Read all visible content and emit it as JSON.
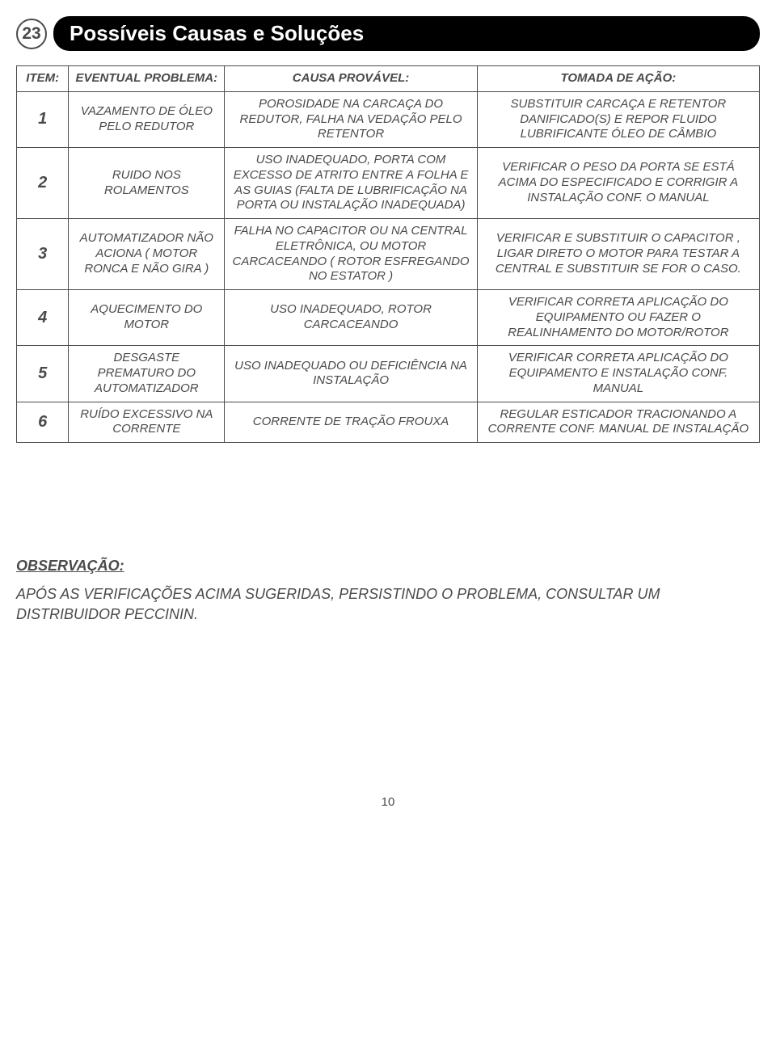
{
  "step_number": "23",
  "page_title": "Possíveis Causas e Soluções",
  "table": {
    "headers": {
      "item": "ITEM:",
      "problem": "EVENTUAL PROBLEMA:",
      "cause": "CAUSA PROVÁVEL:",
      "action": "TOMADA DE AÇÃO:"
    },
    "rows": [
      {
        "item": "1",
        "problem": "VAZAMENTO DE ÓLEO PELO REDUTOR",
        "cause": "POROSIDADE NA CARCAÇA DO REDUTOR, FALHA NA VEDAÇÃO PELO RETENTOR",
        "action": "SUBSTITUIR CARCAÇA E RETENTOR DANIFICADO(S) E REPOR FLUIDO LUBRIFICANTE ÓLEO DE CÂMBIO"
      },
      {
        "item": "2",
        "problem": "RUIDO NOS ROLAMENTOS",
        "cause": "USO INADEQUADO, PORTA COM EXCESSO DE ATRITO ENTRE A FOLHA E AS GUIAS (FALTA DE LUBRIFICAÇÃO NA PORTA OU INSTALAÇÃO INADEQUADA)",
        "action": "VERIFICAR O PESO DA PORTA SE ESTÁ ACIMA DO ESPECIFICADO E CORRIGIR A INSTALAÇÃO CONF. O MANUAL"
      },
      {
        "item": "3",
        "problem": "AUTOMATIZADOR NÃO ACIONA ( MOTOR RONCA E NÃO GIRA )",
        "cause": "FALHA NO CAPACITOR OU NA CENTRAL ELETRÔNICA, OU MOTOR CARCACEANDO ( ROTOR ESFREGANDO NO ESTATOR )",
        "action": "VERIFICAR E SUBSTITUIR O CAPACITOR , LIGAR DIRETO O MOTOR PARA TESTAR A CENTRAL E SUBSTITUIR SE FOR O CASO."
      },
      {
        "item": "4",
        "problem": "AQUECIMENTO DO MOTOR",
        "cause": "USO INADEQUADO, ROTOR CARCACEANDO",
        "action": "VERIFICAR CORRETA APLICAÇÃO DO EQUIPAMENTO OU FAZER O REALINHAMENTO DO MOTOR/ROTOR"
      },
      {
        "item": "5",
        "problem": "DESGASTE PREMATURO DO AUTOMATIZADOR",
        "cause": "USO INADEQUADO OU DEFICIÊNCIA NA INSTALAÇÃO",
        "action": "VERIFICAR CORRETA APLICAÇÃO DO EQUIPAMENTO E INSTALAÇÃO CONF. MANUAL"
      },
      {
        "item": "6",
        "problem": "RUÍDO EXCESSIVO NA CORRENTE",
        "cause": "CORRENTE DE TRAÇÃO FROUXA",
        "action": "REGULAR ESTICADOR TRACIONANDO A CORRENTE CONF. MANUAL DE INSTALAÇÃO"
      }
    ]
  },
  "observation": {
    "heading": "OBSERVAÇÃO:",
    "body": "APÓS AS VERIFICAÇÕES ACIMA SUGERIDAS, PERSISTINDO O PROBLEMA, CONSULTAR UM DISTRIBUIDOR PECCININ."
  },
  "page_number": "10"
}
